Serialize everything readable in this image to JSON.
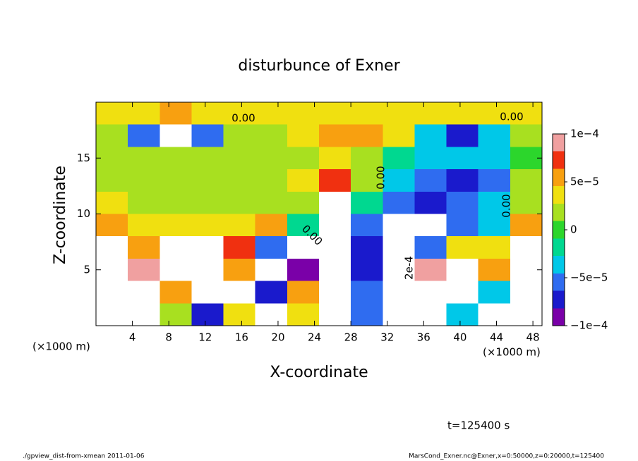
{
  "chart_data": {
    "type": "heatmap",
    "title": "disturbunce of Exner",
    "x_label": "X-coordinate",
    "y_label": "Z-coordinate",
    "x_unit": "(×1000 m)",
    "x_unit_right": "(×1000 m)",
    "time_label": "t=125400 s",
    "footer_left": "./gpview_dist-from-xmean  2011-01-06",
    "footer_right": "MarsCond_Exner.nc@Exner,x=0:50000,z=0:20000,t=125400",
    "contour_labels": [
      "0.00",
      "0.00",
      "0.00",
      "0.00",
      "0.00",
      "2e-4"
    ],
    "xlim": [
      0,
      49
    ],
    "ylim": [
      0,
      20
    ],
    "xticks": [
      4,
      8,
      12,
      16,
      20,
      24,
      28,
      32,
      36,
      40,
      44,
      48
    ],
    "yticks": [
      5,
      10,
      15
    ],
    "x": [
      1.75,
      5.25,
      8.75,
      12.25,
      15.75,
      19.25,
      22.75,
      26.25,
      29.75,
      33.25,
      36.75,
      40.25,
      43.75,
      47.25
    ],
    "y": [
      1,
      3,
      5,
      7,
      9,
      11,
      13,
      15,
      17,
      19
    ],
    "values": [
      [
        -0.00012,
        0.00012,
        2e-05,
        -8e-05,
        4e-05,
        0.00012,
        4e-05,
        0.00012,
        -5e-05,
        0.00012,
        0.00012,
        -4e-05,
        0.00012,
        0.00012
      ],
      [
        0.00012,
        0.00012,
        5e-05,
        0.00012,
        0.00012,
        -8e-05,
        6e-05,
        0.00012,
        -6e-05,
        -0.00016,
        0.00012,
        0.00012,
        -3e-05,
        0.00012
      ],
      [
        0.00012,
        9e-05,
        0.00012,
        0.00014,
        6e-05,
        -0.00012,
        -0.0001,
        0.00012,
        -8e-05,
        -0.00016,
        9e-05,
        0.00012,
        6e-05,
        0.00012
      ],
      [
        0.00012,
        6e-05,
        0.00012,
        0.00012,
        8e-05,
        -6e-05,
        -0.00011,
        0.00012,
        -7e-05,
        -0.00014,
        -6e-05,
        4e-05,
        3e-05,
        0.00012
      ],
      [
        6e-05,
        3e-05,
        4e-05,
        3e-05,
        4e-05,
        5e-05,
        -2e-05,
        0.00012,
        -5e-05,
        -0.00012,
        -0.00011,
        -5e-05,
        -3e-05,
        6e-05
      ],
      [
        3e-05,
        1e-05,
        1e-05,
        1e-05,
        1e-05,
        2e-05,
        2e-05,
        0.00011,
        -2e-05,
        -6e-05,
        -8e-05,
        -6e-05,
        -4e-05,
        2e-05
      ],
      [
        1e-05,
        1e-05,
        1e-05,
        1e-05,
        1e-05,
        1e-05,
        3e-05,
        7e-05,
        1e-05,
        -3e-05,
        -5e-05,
        -7e-05,
        -5e-05,
        1e-05
      ],
      [
        1e-05,
        1e-05,
        1e-05,
        1e-05,
        1e-05,
        1e-05,
        2e-05,
        4e-05,
        1e-05,
        -1e-05,
        -3e-05,
        -4e-05,
        -3e-05,
        0
      ],
      [
        2e-05,
        -6e-05,
        -0.00012,
        -6e-05,
        1e-05,
        2e-05,
        3e-05,
        5e-05,
        6e-05,
        4e-05,
        -4e-05,
        -8e-05,
        -3e-05,
        2e-05
      ],
      [
        3e-05,
        4e-05,
        6e-05,
        4e-05,
        3e-05,
        4e-05,
        3e-05,
        4e-05,
        3e-05,
        4e-05,
        3e-05,
        4e-05,
        3e-05,
        3e-05
      ]
    ],
    "clim": [
      -0.0001,
      0.0001
    ],
    "cticks": [
      {
        "value": -0.0001,
        "label": "−1e−4"
      },
      {
        "value": -5e-05,
        "label": "−5e−5"
      },
      0,
      {
        "value": 5e-05,
        "label": "5e−5"
      },
      {
        "value": 0.0001,
        "label": "1e−4"
      }
    ],
    "colors": [
      "#7a00a8",
      "#1a1acc",
      "#2f6cf0",
      "#00c8e8",
      "#00d890",
      "#2cd62c",
      "#a8e020",
      "#f0e010",
      "#f8a010",
      "#f03010",
      "#f0a0a0"
    ],
    "out_of_range_color": "#ffffff"
  }
}
